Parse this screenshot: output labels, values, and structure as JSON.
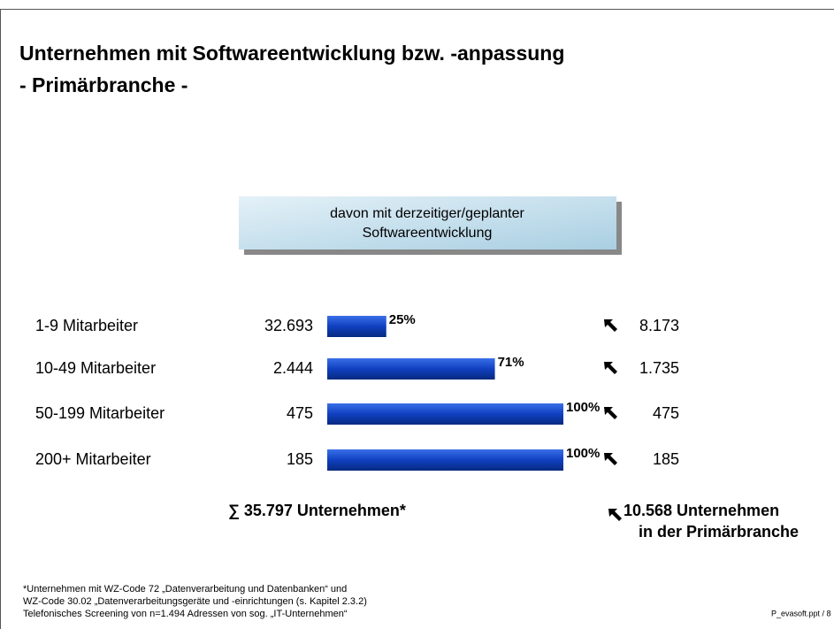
{
  "chart_data": {
    "type": "bar",
    "title": [
      "Unternehmen mit Softwareentwicklung bzw. -anpassung",
      "- Primärbranche -"
    ],
    "header": [
      "davon mit derzeitiger/geplanter",
      "Softwareentwicklung"
    ],
    "categories": [
      "1-9 Mitarbeiter",
      "10-49 Mitarbeiter",
      "50-199 Mitarbeiter",
      "200+ Mitarbeiter"
    ],
    "counts": [
      "32.693",
      "2.444",
      "475",
      "185"
    ],
    "values": [
      25,
      71,
      100,
      100
    ],
    "value_labels": [
      "25%",
      "71%",
      "100%",
      "100%"
    ],
    "results": [
      "8.173",
      "1.735",
      "475",
      "185"
    ],
    "color": "#1040c0",
    "total": "∑ 35.797 Unternehmen*",
    "result_total": [
      "10.568 Unternehmen",
      "in der Primärbranche"
    ],
    "footnotes": [
      "*Unternehmen mit WZ-Code 72 „Datenverarbeitung und Datenbanken“ und",
      "WZ-Code 30.02 „Datenverarbeitungsgeräte und -einrichtungen (s. Kapitel 2.3.2)",
      "Telefonisches Screening von n=1.494 Adressen von sog. „IT-Unternehmen“"
    ],
    "slide_id": "P_evasoft.ppt / 8"
  }
}
